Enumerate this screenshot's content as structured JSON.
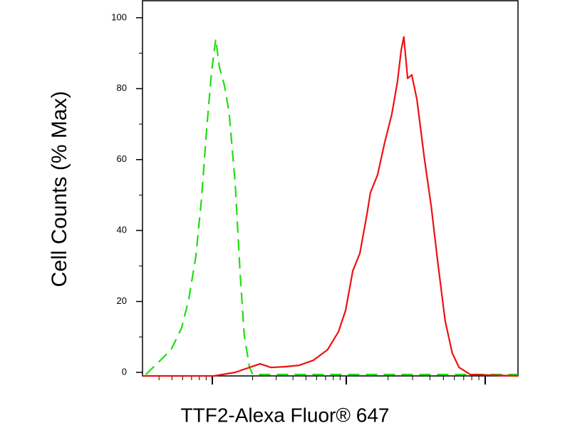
{
  "chart_data": {
    "type": "line",
    "ylabel": "Cell Counts (% Max)",
    "xlabel": "TTF2-Alexa Fluor® 647",
    "xlim": [
      0,
      100
    ],
    "ylim": [
      -1,
      105
    ],
    "yticks": [
      0,
      20,
      40,
      60,
      80,
      100
    ],
    "series": [
      {
        "color": "#22dd11",
        "dash": true,
        "x": [
          0.9,
          3.8,
          7.6,
          10.4,
          12.3,
          14.2,
          15.7,
          17.1,
          18.4,
          19.5,
          20.5,
          21.8,
          23.1,
          24.7,
          26,
          27.1,
          28.5,
          29.4,
          60,
          100
        ],
        "values": [
          -0.6,
          2.4,
          6.4,
          12.5,
          20.5,
          32.6,
          48.7,
          68.8,
          84.9,
          94,
          86,
          81,
          73,
          53,
          28,
          10.5,
          1.4,
          -0.6,
          -0.6,
          -0.6
        ]
      },
      {
        "color": "#ee1111",
        "dash": false,
        "x": [
          0,
          19,
          24.7,
          28.5,
          31.3,
          34.2,
          37.9,
          41.7,
          45.5,
          49.3,
          52.2,
          54.1,
          56,
          57.9,
          59.8,
          60.7,
          62.6,
          64.5,
          66.4,
          67.9,
          68.9,
          69.6,
          70.6,
          71.7,
          73.1,
          75,
          76.9,
          78.7,
          80.6,
          82.5,
          84.3,
          87.3,
          100
        ],
        "values": [
          -1,
          -1,
          0,
          1.4,
          2.4,
          1.4,
          1.6,
          2,
          3.4,
          6.4,
          11.5,
          17.5,
          28.6,
          33.6,
          44.7,
          50.7,
          55.7,
          64.8,
          72.8,
          81.9,
          90.9,
          94.6,
          82.9,
          83.9,
          76.9,
          60.8,
          46.7,
          30.6,
          14.5,
          5.4,
          1.4,
          -0.6,
          -1
        ]
      }
    ]
  }
}
